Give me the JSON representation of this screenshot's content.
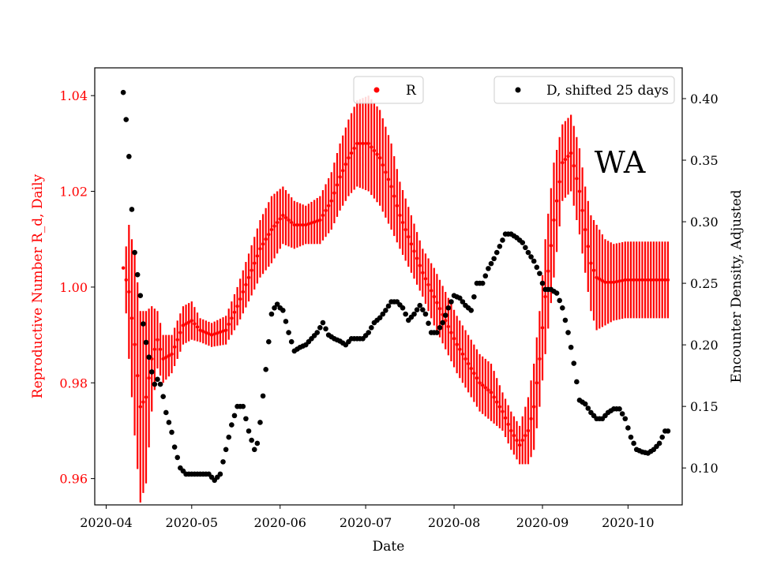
{
  "chart_data": {
    "type": "scatter",
    "title": "",
    "annotation": "WA",
    "xlabel": "Date",
    "ylabel_left": "Reproductive Number R_d, Daily",
    "ylabel_right": "Encounter Density, Adjusted",
    "x_ticks": [
      "2020-04",
      "2020-05",
      "2020-06",
      "2020-07",
      "2020-08",
      "2020-09",
      "2020-10"
    ],
    "x_tick_days": [
      0,
      30,
      61,
      91,
      122,
      153,
      183
    ],
    "x_start_date": "2020-04-01",
    "xlim_days": [
      -4,
      202
    ],
    "ylim_left": [
      0.9545,
      1.0458
    ],
    "yticks_left": [
      "0.96",
      "0.98",
      "1.00",
      "1.02",
      "1.04"
    ],
    "ylim_right": [
      0.07,
      0.425
    ],
    "yticks_right": [
      "0.10",
      "0.15",
      "0.20",
      "0.25",
      "0.30",
      "0.35",
      "0.40"
    ],
    "colors": {
      "R": "#ff0000",
      "D": "#000000",
      "left_axis": "#ff0000"
    },
    "legend": {
      "R": {
        "label": "R",
        "position": "top-center"
      },
      "D": {
        "label": "D, shifted 25 days",
        "position": "top-right"
      }
    },
    "series_R": {
      "name": "R",
      "day_start": 6,
      "day_end": 197,
      "knots_day": [
        6,
        8,
        10,
        12,
        14,
        16,
        18,
        20,
        23,
        27,
        30,
        33,
        37,
        42,
        46,
        50,
        54,
        58,
        62,
        66,
        70,
        75,
        79,
        82,
        85,
        88,
        92,
        96,
        100,
        103,
        107,
        111,
        115,
        119,
        123,
        127,
        131,
        135,
        139,
        142,
        145,
        148,
        150,
        152,
        154,
        157,
        160,
        163,
        166,
        168,
        170,
        172,
        175,
        178,
        182,
        186,
        190,
        194,
        197
      ],
      "knots_center": [
        1.004,
        0.999,
        0.988,
        0.975,
        0.977,
        0.985,
        0.989,
        0.985,
        0.986,
        0.992,
        0.993,
        0.991,
        0.99,
        0.991,
        0.996,
        1.002,
        1.008,
        1.012,
        1.015,
        1.013,
        1.013,
        1.014,
        1.018,
        1.023,
        1.027,
        1.03,
        1.03,
        1.027,
        1.021,
        1.015,
        1.009,
        1.003,
        0.998,
        0.993,
        0.988,
        0.984,
        0.98,
        0.978,
        0.974,
        0.97,
        0.967,
        0.97,
        0.975,
        0.985,
        0.998,
        1.014,
        1.026,
        1.028,
        1.02,
        1.012,
        1.005,
        1.002,
        1.001,
        1.001,
        1.0015,
        1.0015,
        1.0015,
        1.0015,
        1.0015
      ],
      "knots_half": [
        0.0,
        0.014,
        0.019,
        0.02,
        0.018,
        0.011,
        0.006,
        0.005,
        0.004,
        0.004,
        0.004,
        0.0025,
        0.0025,
        0.003,
        0.004,
        0.005,
        0.006,
        0.007,
        0.006,
        0.005,
        0.004,
        0.005,
        0.006,
        0.007,
        0.008,
        0.009,
        0.01,
        0.01,
        0.009,
        0.007,
        0.006,
        0.005,
        0.006,
        0.006,
        0.006,
        0.006,
        0.006,
        0.006,
        0.004,
        0.004,
        0.004,
        0.007,
        0.009,
        0.01,
        0.012,
        0.012,
        0.008,
        0.008,
        0.009,
        0.009,
        0.01,
        0.011,
        0.009,
        0.008,
        0.008,
        0.008,
        0.008,
        0.008,
        0.008
      ]
    },
    "series_D": {
      "name": "D, shifted 25 days",
      "knots_day": [
        6,
        7,
        8,
        9,
        10,
        11,
        12,
        13,
        14,
        15,
        16,
        17,
        18,
        19,
        20,
        21,
        22,
        23,
        24,
        26,
        28,
        30,
        32,
        34,
        36,
        38,
        40,
        42,
        44,
        46,
        48,
        50,
        52,
        53,
        54,
        56,
        58,
        59,
        60,
        61,
        62,
        64,
        66,
        68,
        70,
        72,
        74,
        76,
        78,
        80,
        82,
        84,
        86,
        88,
        90,
        92,
        94,
        96,
        98,
        100,
        102,
        104,
        106,
        108,
        110,
        112,
        114,
        116,
        118,
        120,
        122,
        124,
        126,
        128,
        130,
        132,
        134,
        136,
        138,
        140,
        142,
        144,
        146,
        148,
        150,
        152,
        153,
        154,
        156,
        158,
        160,
        162,
        163,
        164,
        166,
        168,
        170,
        172,
        174,
        176,
        178,
        180,
        182,
        184,
        186,
        188,
        190,
        192,
        194,
        196,
        197
      ],
      "knots_value": [
        0.405,
        0.383,
        0.353,
        0.31,
        0.275,
        0.257,
        0.24,
        0.217,
        0.202,
        0.19,
        0.178,
        0.168,
        0.172,
        0.168,
        0.158,
        0.145,
        0.137,
        0.129,
        0.117,
        0.1,
        0.095,
        0.095,
        0.095,
        0.095,
        0.095,
        0.09,
        0.095,
        0.115,
        0.135,
        0.15,
        0.15,
        0.13,
        0.115,
        0.12,
        0.137,
        0.18,
        0.225,
        0.23,
        0.233,
        0.23,
        0.228,
        0.21,
        0.195,
        0.198,
        0.2,
        0.205,
        0.21,
        0.218,
        0.208,
        0.205,
        0.203,
        0.2,
        0.205,
        0.205,
        0.205,
        0.21,
        0.218,
        0.222,
        0.228,
        0.235,
        0.235,
        0.23,
        0.22,
        0.225,
        0.232,
        0.225,
        0.21,
        0.21,
        0.218,
        0.23,
        0.24,
        0.238,
        0.232,
        0.228,
        0.25,
        0.25,
        0.262,
        0.27,
        0.28,
        0.29,
        0.29,
        0.287,
        0.283,
        0.275,
        0.268,
        0.258,
        0.25,
        0.245,
        0.245,
        0.242,
        0.23,
        0.21,
        0.198,
        0.185,
        0.155,
        0.152,
        0.145,
        0.14,
        0.14,
        0.145,
        0.148,
        0.148,
        0.14,
        0.125,
        0.115,
        0.113,
        0.112,
        0.115,
        0.12,
        0.13,
        0.13
      ]
    }
  }
}
